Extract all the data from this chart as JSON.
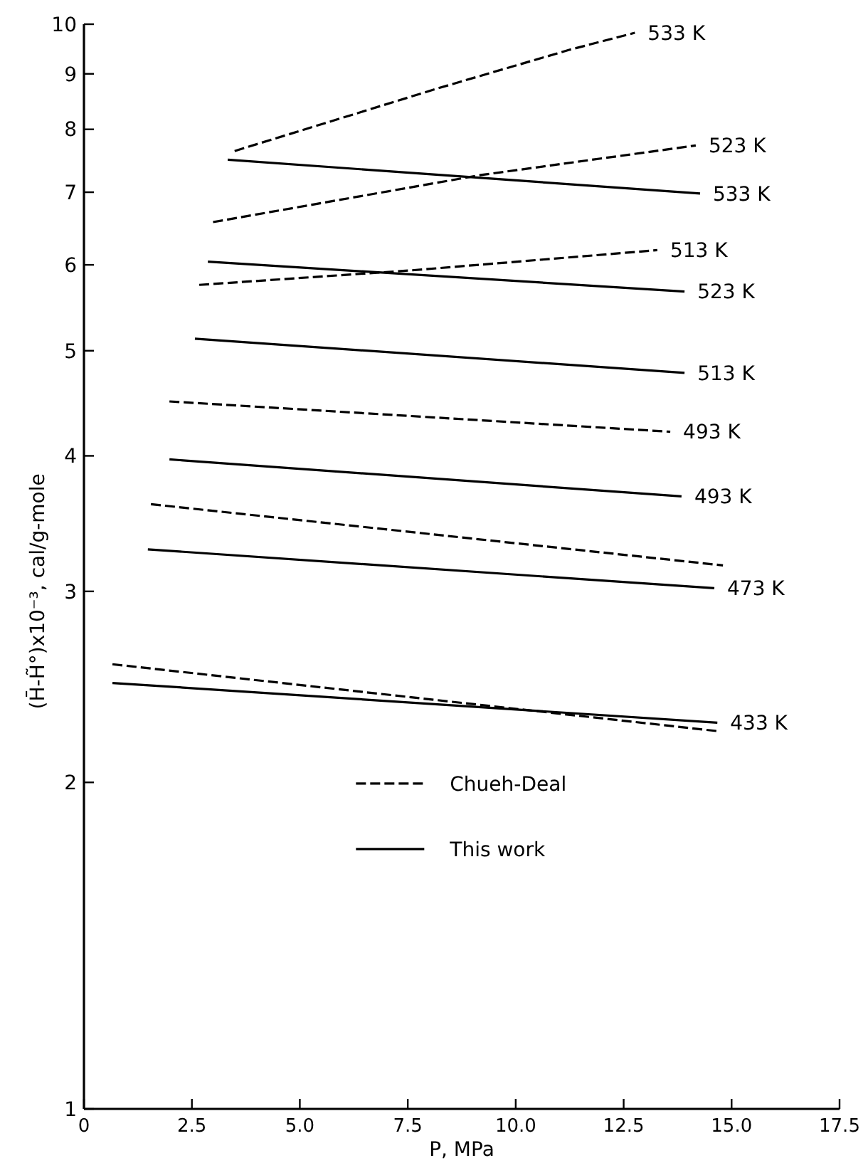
{
  "chart_data": {
    "type": "line",
    "xlabel": "P, MPa",
    "ylabel": "(H̄-H̃°)x10⁻³, cal/g-mole",
    "log": "y",
    "xlim": [
      0,
      17.5
    ],
    "ylim": [
      1,
      10
    ],
    "xticks": [
      0,
      2.5,
      {
        "value": 5,
        "label": "5.0"
      },
      7.5,
      {
        "value": 10,
        "label": "10.0"
      },
      12.5,
      {
        "value": 15,
        "label": "15.0"
      },
      17.5
    ],
    "yticks": [
      1,
      2,
      3,
      4,
      5,
      6,
      7,
      8,
      9,
      10
    ],
    "grid": false,
    "legend": "center",
    "marker": "none",
    "color": "#000000",
    "series": [
      {
        "name": "Chueh-Deal",
        "line_style": "dashed",
        "x": [
          3.49,
          8.21,
          11.24,
          12.76,
          null,
          2.99,
          9.19,
          14.17,
          null,
          2.67,
          7.58,
          13.28,
          null,
          1.98,
          13.58,
          null,
          1.55,
          14.8,
          null,
          0.66,
          14.67
        ],
        "values": [
          7.64,
          8.73,
          9.47,
          9.82,
          null,
          6.57,
          7.26,
          7.73,
          null,
          5.75,
          5.93,
          6.19,
          null,
          4.49,
          4.21,
          null,
          3.61,
          3.17,
          null,
          2.57,
          2.23
        ]
      },
      {
        "name": "This work",
        "line_style": "solid",
        "x": [
          3.33,
          14.27,
          null,
          2.87,
          13.91,
          null,
          2.57,
          13.91,
          null,
          1.98,
          13.84,
          null,
          1.48,
          14.6,
          null,
          0.66,
          14.67
        ],
        "values": [
          7.5,
          6.98,
          null,
          6.04,
          5.67,
          null,
          5.13,
          4.77,
          null,
          3.97,
          3.67,
          null,
          3.28,
          3.02,
          null,
          2.47,
          2.27
        ]
      }
    ],
    "annotations": [
      {
        "text": "533 K",
        "x": 12.76,
        "y": 9.82
      },
      {
        "text": "523 K",
        "x": 14.17,
        "y": 7.73
      },
      {
        "text": "533 K",
        "x": 14.27,
        "y": 6.98
      },
      {
        "text": "513 K",
        "x": 13.28,
        "y": 6.19
      },
      {
        "text": "523 K",
        "x": 13.91,
        "y": 5.67
      },
      {
        "text": "513 K",
        "x": 13.91,
        "y": 4.77
      },
      {
        "text": "493 K",
        "x": 13.58,
        "y": 4.21
      },
      {
        "text": "493 K",
        "x": 13.84,
        "y": 3.67
      },
      {
        "text": "473 K",
        "x": 14.6,
        "y": 3.02
      },
      {
        "text": "433 K",
        "x": 14.67,
        "y": 2.27
      }
    ]
  }
}
